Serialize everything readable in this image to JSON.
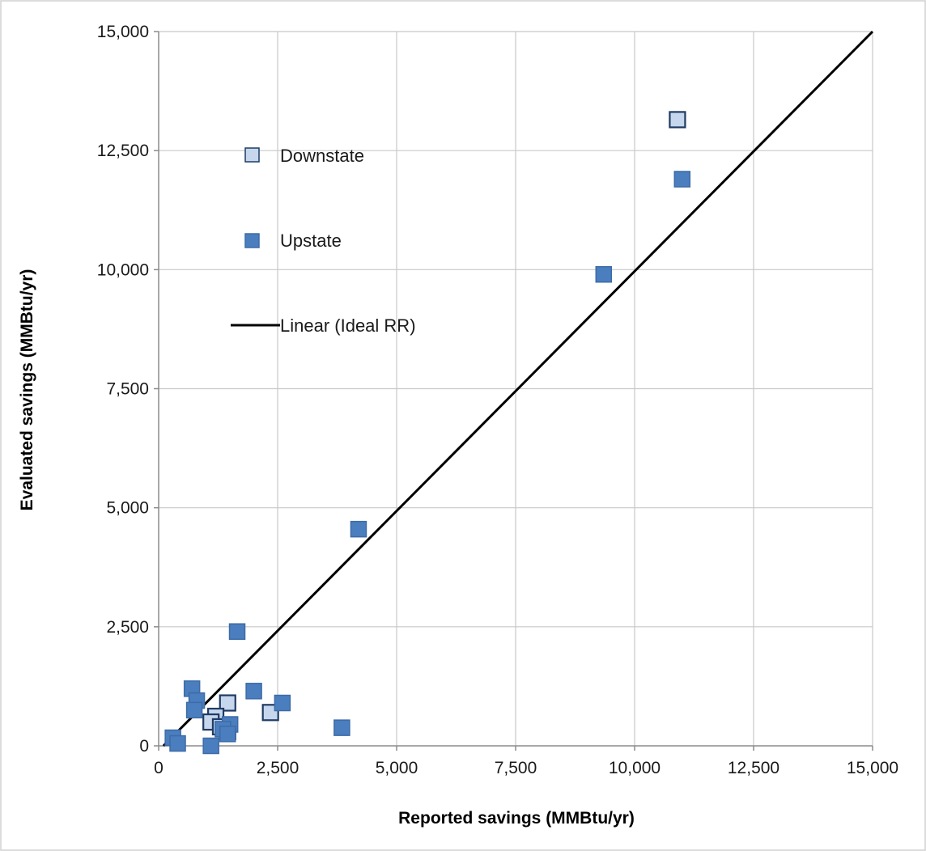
{
  "chart_data": {
    "type": "scatter",
    "xlabel": "Reported savings (MMBtu/yr)",
    "ylabel": "Evaluated savings (MMBtu/yr)",
    "xlim": [
      0,
      15000
    ],
    "ylim": [
      0,
      15000
    ],
    "x_ticks": [
      "0",
      "2,500",
      "5,000",
      "7,500",
      "10,000",
      "12,500",
      "15,000"
    ],
    "y_ticks": [
      "0",
      "2,500",
      "5,000",
      "7,500",
      "10,000",
      "12,500",
      "15,000"
    ],
    "tick_values": [
      0,
      2500,
      5000,
      7500,
      10000,
      12500,
      15000
    ],
    "grid": true,
    "legend_position": "top-left",
    "series": [
      {
        "name": "Downstate",
        "marker": "square",
        "fill": "#c6d6ec",
        "stroke": "#1f3b63",
        "points": [
          {
            "x": 10900,
            "y": 13150
          },
          {
            "x": 1450,
            "y": 900
          },
          {
            "x": 2350,
            "y": 700
          },
          {
            "x": 1200,
            "y": 620
          },
          {
            "x": 1100,
            "y": 500
          },
          {
            "x": 1300,
            "y": 400
          },
          {
            "x": 1450,
            "y": 300
          }
        ]
      },
      {
        "name": "Upstate",
        "marker": "square",
        "fill": "#4a7ebf",
        "stroke": "#3d6ba6",
        "points": [
          {
            "x": 11000,
            "y": 11900
          },
          {
            "x": 9350,
            "y": 9900
          },
          {
            "x": 4200,
            "y": 4550
          },
          {
            "x": 1650,
            "y": 2400
          },
          {
            "x": 700,
            "y": 1200
          },
          {
            "x": 800,
            "y": 950
          },
          {
            "x": 750,
            "y": 750
          },
          {
            "x": 2000,
            "y": 1150
          },
          {
            "x": 2600,
            "y": 900
          },
          {
            "x": 3850,
            "y": 380
          },
          {
            "x": 1500,
            "y": 450
          },
          {
            "x": 1350,
            "y": 350
          },
          {
            "x": 1450,
            "y": 250
          },
          {
            "x": 1100,
            "y": 0
          },
          {
            "x": 300,
            "y": 170
          },
          {
            "x": 400,
            "y": 50
          }
        ]
      }
    ],
    "lines": [
      {
        "name": "Linear (Ideal RR)",
        "color": "#000000",
        "x": [
          100,
          15000
        ],
        "y": [
          0,
          15000
        ]
      }
    ]
  }
}
